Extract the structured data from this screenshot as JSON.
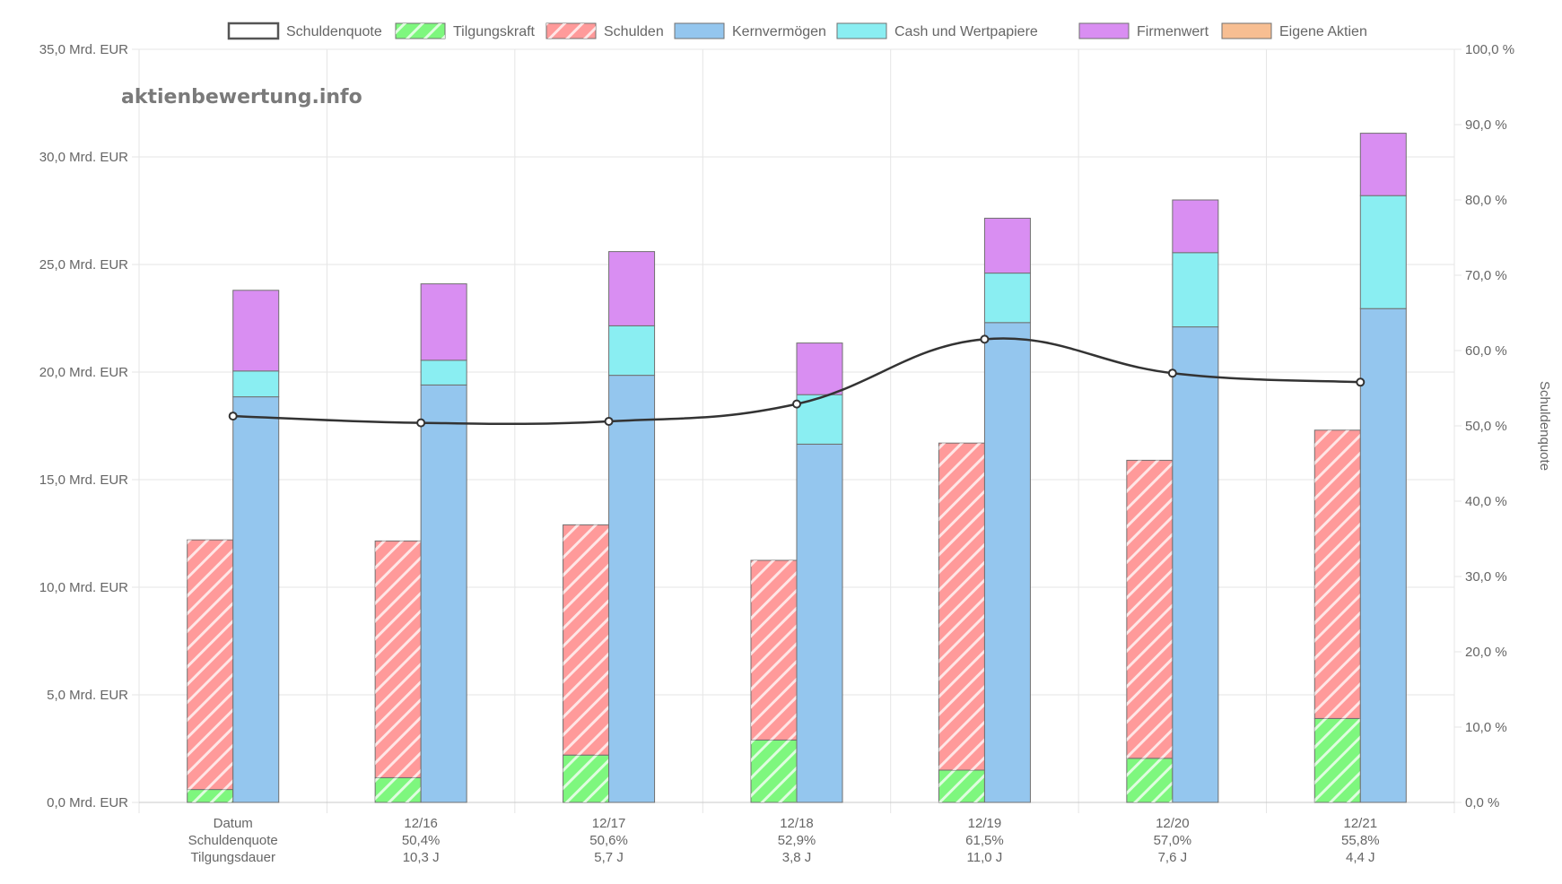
{
  "watermark": "aktienbewertung.info",
  "colors": {
    "schuldenquote_line": "#333333",
    "tilgungskraft": "#7ef77e",
    "schulden": "#ff9a9a",
    "kernvermoegen": "#94c6ee",
    "cash": "#8aeef2",
    "firmenwert": "#d98ef2",
    "eigene_aktien": "#f7be92",
    "grid": "#e5e5e5",
    "bar_border": "#707070"
  },
  "legend": [
    {
      "key": "schuldenquote",
      "label": "Schuldenquote",
      "style": "line"
    },
    {
      "key": "tilgungskraft",
      "label": "Tilgungskraft",
      "style": "hatched"
    },
    {
      "key": "schulden",
      "label": "Schulden",
      "style": "hatched"
    },
    {
      "key": "kernvermoegen",
      "label": "Kernvermögen",
      "style": "solid"
    },
    {
      "key": "cash",
      "label": "Cash und Wertpapiere",
      "style": "solid"
    },
    {
      "key": "firmenwert",
      "label": "Firmenwert",
      "style": "solid"
    },
    {
      "key": "eigene_aktien",
      "label": "Eigene Aktien",
      "style": "solid"
    }
  ],
  "chart_data": {
    "type": "bar",
    "categories": [
      "Datum",
      "12/16",
      "12/17",
      "12/18",
      "12/19",
      "12/20",
      "12/21"
    ],
    "category_rows": [
      [
        "Datum",
        "Schuldenquote",
        "Tilgungsdauer"
      ],
      [
        "12/16",
        "50,4%",
        "10,3 J"
      ],
      [
        "12/17",
        "50,6%",
        "5,7 J"
      ],
      [
        "12/18",
        "52,9%",
        "3,8 J"
      ],
      [
        "12/19",
        "61,5%",
        "11,0 J"
      ],
      [
        "12/20",
        "57,0%",
        "7,6 J"
      ],
      [
        "12/21",
        "55,8%",
        "4,4 J"
      ]
    ],
    "series": [
      {
        "name": "Tilgungskraft",
        "key": "tilgungskraft",
        "stack": "debt",
        "unit": "Mrd. EUR",
        "values": [
          0.6,
          1.15,
          2.2,
          2.9,
          1.5,
          2.05,
          3.9
        ]
      },
      {
        "name": "Schulden",
        "key": "schulden",
        "stack": "debt",
        "unit": "Mrd. EUR",
        "values": [
          11.6,
          11.0,
          10.7,
          8.35,
          15.2,
          13.85,
          13.4
        ]
      },
      {
        "name": "Kernvermögen",
        "key": "kernvermoegen",
        "stack": "assets",
        "unit": "Mrd. EUR",
        "values": [
          18.85,
          19.4,
          19.85,
          16.65,
          22.3,
          22.1,
          22.95
        ]
      },
      {
        "name": "Cash und Wertpapiere",
        "key": "cash",
        "stack": "assets",
        "unit": "Mrd. EUR",
        "values": [
          1.2,
          1.15,
          2.3,
          2.3,
          2.3,
          3.45,
          5.25
        ]
      },
      {
        "name": "Firmenwert",
        "key": "firmenwert",
        "stack": "assets",
        "unit": "Mrd. EUR",
        "values": [
          3.75,
          3.55,
          3.45,
          2.4,
          2.55,
          2.45,
          2.9
        ]
      },
      {
        "name": "Eigene Aktien",
        "key": "eigene_aktien",
        "stack": "assets",
        "unit": "Mrd. EUR",
        "values": [
          0,
          0,
          0,
          0,
          0,
          0,
          0
        ]
      },
      {
        "name": "Schuldenquote",
        "key": "schuldenquote",
        "type": "line",
        "axis": "right",
        "unit": "%",
        "values": [
          51.3,
          50.4,
          50.6,
          52.9,
          61.5,
          57.0,
          55.8
        ]
      }
    ],
    "y_left": {
      "min": 0,
      "max": 35,
      "step": 5,
      "tick_labels": [
        "0,0 Mrd. EUR",
        "5,0 Mrd. EUR",
        "10,0 Mrd. EUR",
        "15,0 Mrd. EUR",
        "20,0 Mrd. EUR",
        "25,0 Mrd. EUR",
        "30,0 Mrd. EUR",
        "35,0 Mrd. EUR"
      ]
    },
    "y_right": {
      "min": 0,
      "max": 100,
      "step": 10,
      "label": "Schuldenquote",
      "tick_labels": [
        "0,0 %",
        "10,0 %",
        "20,0 %",
        "30,0 %",
        "40,0 %",
        "50,0 %",
        "60,0 %",
        "70,0 %",
        "80,0 %",
        "90,0 %",
        "100,0 %"
      ]
    },
    "grid": true,
    "legend_position": "top-center"
  }
}
